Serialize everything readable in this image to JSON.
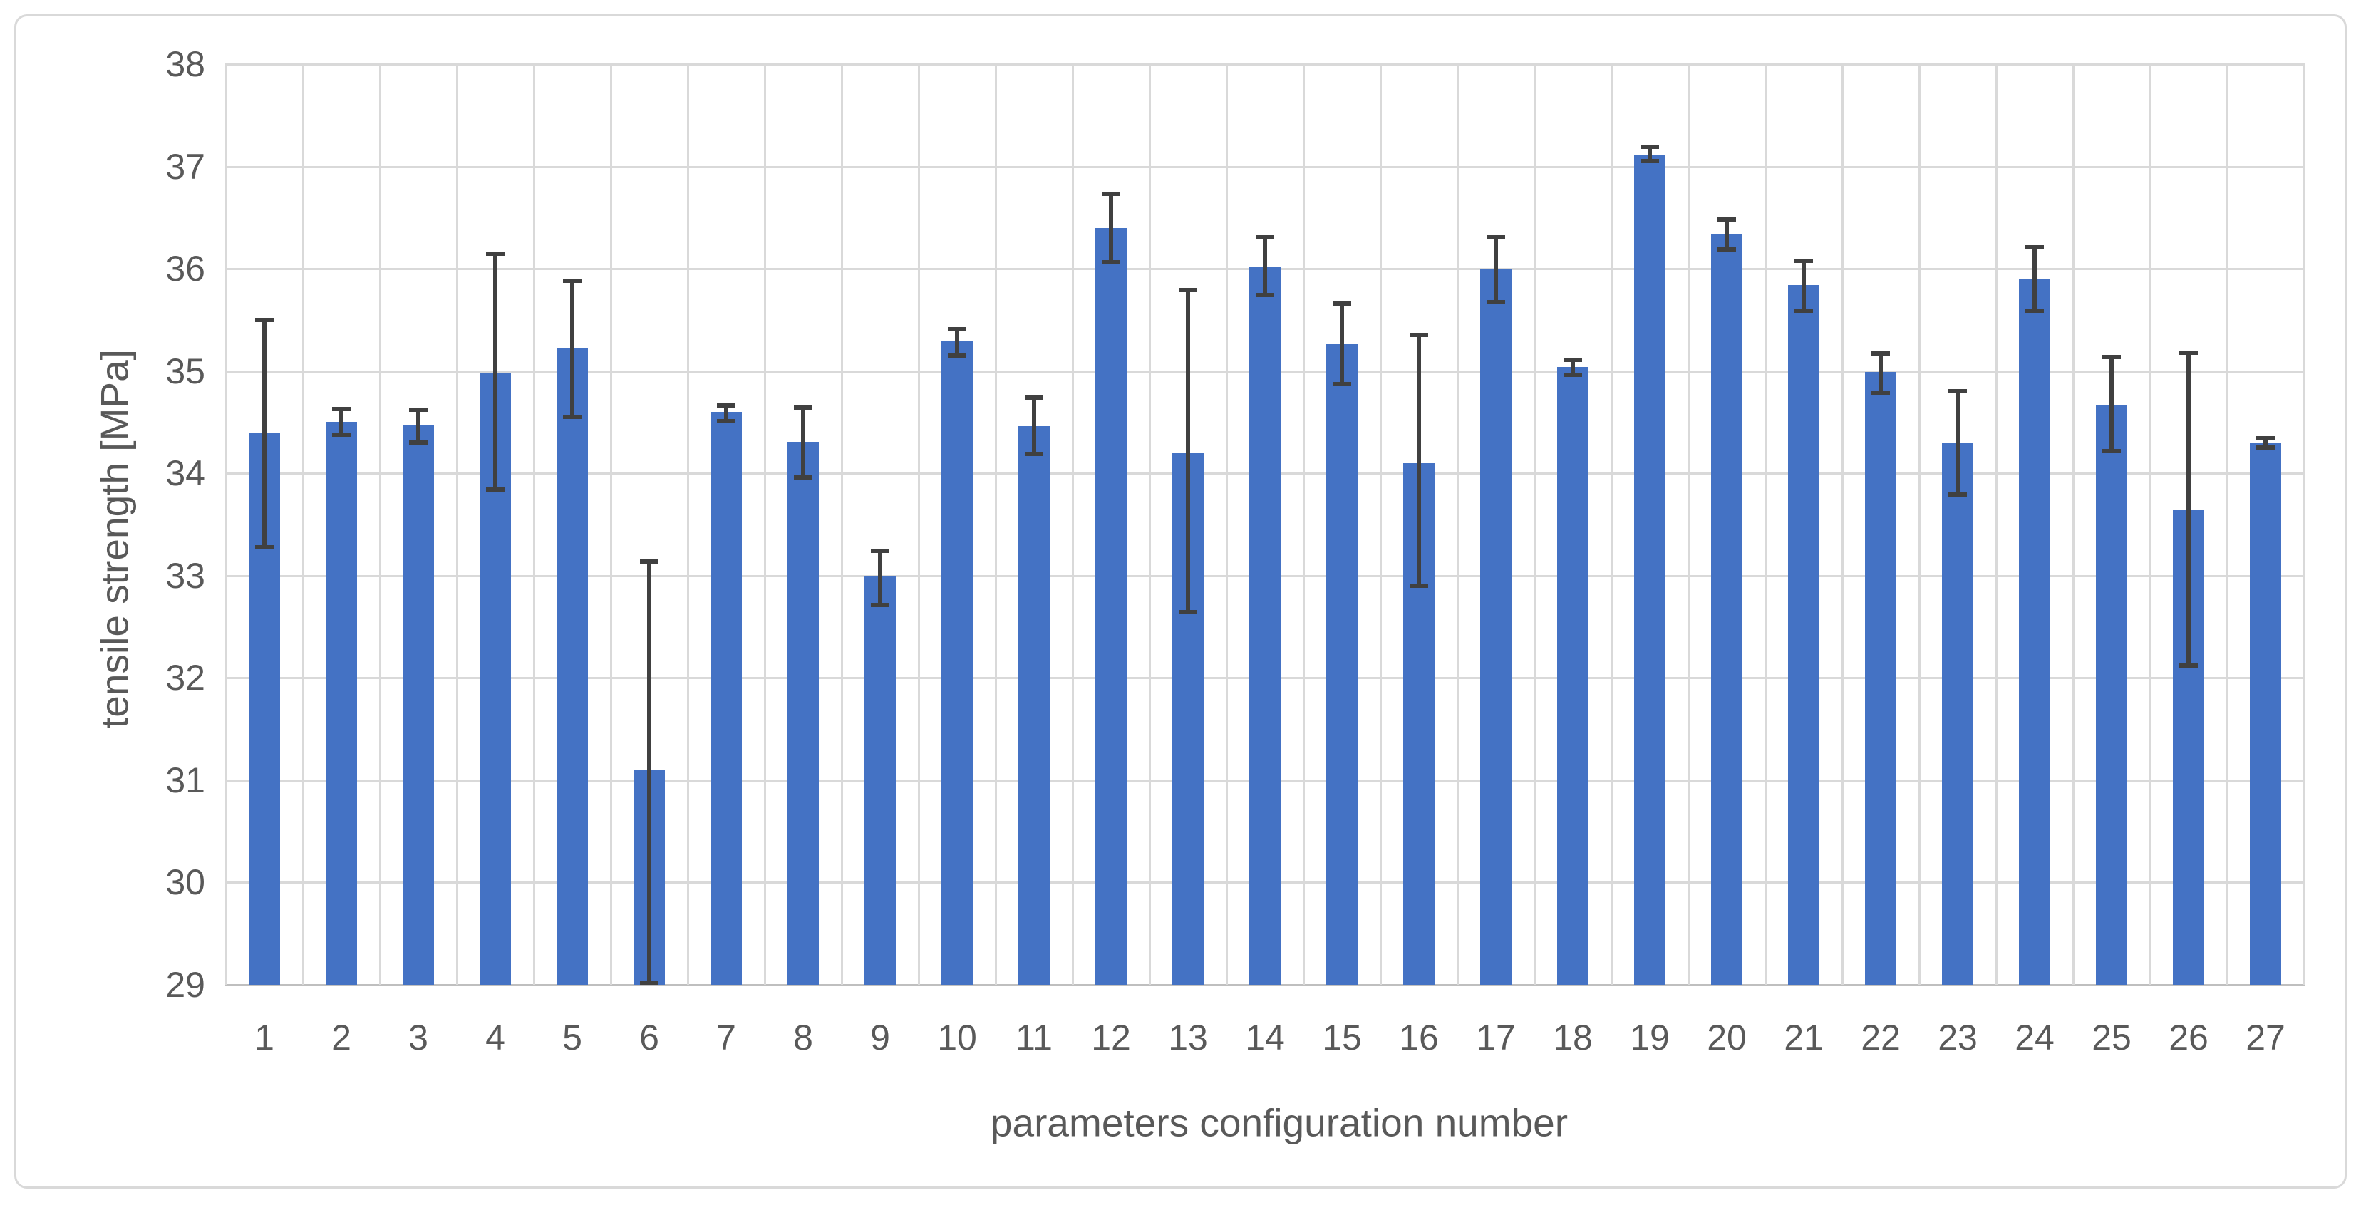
{
  "page": {
    "background": "#ffffff",
    "frame_border_color": "#d9d9d9"
  },
  "chart_data": {
    "type": "bar",
    "title": "",
    "xlabel": "parameters configuration number",
    "ylabel": "tensile strength [MPa]",
    "categories": [
      "1",
      "2",
      "3",
      "4",
      "5",
      "6",
      "7",
      "8",
      "9",
      "10",
      "11",
      "12",
      "13",
      "14",
      "15",
      "16",
      "17",
      "18",
      "19",
      "20",
      "21",
      "22",
      "23",
      "24",
      "25",
      "26",
      "27"
    ],
    "values": [
      34.4,
      34.5,
      34.47,
      34.98,
      35.22,
      31.1,
      34.6,
      34.31,
      32.99,
      35.29,
      34.46,
      36.4,
      34.2,
      36.02,
      35.26,
      34.1,
      36.0,
      35.04,
      37.11,
      36.34,
      35.84,
      34.99,
      34.3,
      35.9,
      34.67,
      33.64,
      34.3
    ],
    "error_low": [
      33.28,
      34.38,
      34.3,
      33.84,
      34.55,
      29.02,
      34.51,
      33.96,
      32.71,
      35.15,
      34.19,
      36.06,
      32.64,
      35.74,
      34.87,
      32.9,
      35.67,
      34.96,
      37.05,
      36.19,
      35.59,
      34.79,
      33.79,
      35.59,
      34.22,
      32.12,
      34.25
    ],
    "error_high": [
      35.5,
      34.63,
      34.62,
      36.15,
      35.88,
      33.14,
      34.66,
      34.64,
      33.24,
      35.41,
      34.74,
      36.73,
      35.79,
      36.31,
      35.66,
      35.35,
      36.31,
      35.11,
      37.19,
      36.48,
      36.08,
      35.17,
      34.8,
      36.21,
      35.14,
      35.18,
      34.34
    ],
    "ylim": [
      29,
      38
    ],
    "yticks": [
      29,
      30,
      31,
      32,
      33,
      34,
      35,
      36,
      37,
      38
    ],
    "grid": true,
    "legend": "none",
    "colors": {
      "bar": "#4472c4",
      "error_bar": "#404040",
      "gridline": "#d9d9d9",
      "axis_line": "#bfbfbf",
      "tick_text": "#595959",
      "axis_title_text": "#595959"
    }
  }
}
